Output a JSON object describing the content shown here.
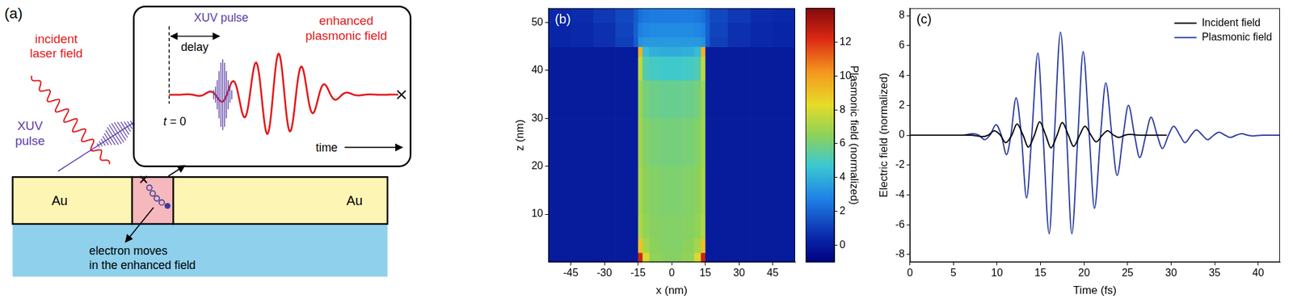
{
  "diagram": {
    "panel_label": "(a)",
    "incident_field": [
      "incident",
      "laser field"
    ],
    "xuv_pulse": [
      "XUV",
      "pulse"
    ],
    "metal_left": "Au",
    "metal_right": "Au",
    "electron_note": [
      "electron moves",
      "in the enhanced field"
    ],
    "inset": {
      "xuv_pulse": "XUV pulse",
      "delay": "delay",
      "plasmonic_field": [
        "enhanced",
        "plasmonic field"
      ],
      "time_zero": "t = 0",
      "time": "time"
    }
  },
  "chart_data": [
    {
      "type": "heatmap",
      "panel_label": "(b)",
      "x_label": "x (nm)",
      "y_label": "z (nm)",
      "xlim": [
        -55,
        55
      ],
      "xticks": [
        -45,
        -30,
        -15,
        0,
        15,
        30,
        45
      ],
      "ylim": [
        0,
        53
      ],
      "yticks": [
        10,
        20,
        30,
        40,
        50
      ],
      "grid": false,
      "x_edges": [
        -55,
        -45,
        -35,
        -25,
        -17,
        -15,
        -13,
        -10,
        -5,
        0,
        5,
        10,
        13,
        15,
        17,
        25,
        35,
        45,
        55
      ],
      "y_edges": [
        0,
        2,
        5,
        10,
        20,
        30,
        38,
        43,
        45,
        47,
        50,
        53
      ],
      "cells": [
        [
          0,
          0,
          0,
          0,
          0,
          12.5,
          8,
          6.6,
          6.4,
          6.4,
          6.6,
          8,
          12.5,
          0,
          0,
          0,
          0,
          0
        ],
        [
          0,
          0,
          0,
          0,
          0,
          9,
          7,
          6.5,
          6.3,
          6.3,
          6.5,
          7,
          9,
          0,
          0,
          0,
          0,
          0
        ],
        [
          0,
          0,
          0,
          0,
          0,
          7.2,
          6.6,
          6.4,
          6.3,
          6.3,
          6.4,
          6.6,
          7.2,
          0,
          0,
          0,
          0,
          0
        ],
        [
          0,
          0,
          0,
          0,
          0,
          7,
          6.5,
          6.3,
          6.2,
          6.2,
          6.3,
          6.5,
          7,
          0,
          0,
          0,
          0,
          0
        ],
        [
          0,
          0,
          0,
          0,
          0,
          6.9,
          6.3,
          6.1,
          6,
          6,
          6.1,
          6.3,
          6.9,
          0,
          0,
          0,
          0,
          0
        ],
        [
          0,
          0,
          0,
          0,
          0,
          6.8,
          6,
          5.8,
          5.7,
          5.7,
          5.8,
          6,
          6.8,
          0,
          0,
          0,
          0,
          0
        ],
        [
          0,
          0,
          0,
          0,
          0,
          7.5,
          5.2,
          4.9,
          4.8,
          4.8,
          4.9,
          5.2,
          7.5,
          0,
          0,
          0,
          0,
          0
        ],
        [
          0,
          0,
          0,
          0,
          0,
          9.5,
          4.4,
          4,
          3.9,
          3.9,
          4,
          4.4,
          9.5,
          0,
          0,
          0,
          0,
          0
        ],
        [
          0.4,
          0.5,
          0.7,
          1.1,
          1.8,
          3.2,
          3.4,
          3.4,
          3.4,
          3.4,
          3.4,
          3.4,
          3.2,
          1.8,
          1.1,
          0.7,
          0.5,
          0.4
        ],
        [
          0.4,
          0.5,
          0.7,
          1.2,
          1.9,
          2.7,
          2.9,
          3,
          3,
          3,
          3,
          2.9,
          2.7,
          1.9,
          1.2,
          0.7,
          0.5,
          0.4
        ],
        [
          0.5,
          0.6,
          0.9,
          1.3,
          1.8,
          2.3,
          2.5,
          2.6,
          2.6,
          2.6,
          2.6,
          2.5,
          2.3,
          1.8,
          1.3,
          0.9,
          0.6,
          0.5
        ]
      ],
      "colorbar": {
        "label": "Plasmonic field (normalized)",
        "range": [
          -1,
          14
        ],
        "ticks": [
          0,
          2,
          4,
          6,
          8,
          10,
          12
        ]
      }
    },
    {
      "type": "line",
      "panel_label": "(c)",
      "x_label": "Time (fs)",
      "y_label": "Electric field (normalized)",
      "xlim": [
        0,
        42.5
      ],
      "xticks": [
        0,
        5,
        10,
        15,
        20,
        25,
        30,
        35,
        40
      ],
      "ylim": [
        -8.5,
        8.5
      ],
      "yticks": [
        -8,
        -6,
        -4,
        -2,
        0,
        2,
        4,
        6,
        8
      ],
      "grid": false,
      "legend": "upper right",
      "series": [
        {
          "name": "Incident field",
          "color": "#000000",
          "x": [
            0,
            7,
            8.3,
            9.0,
            9.7,
            10.4,
            11.0,
            11.7,
            12.3,
            13.0,
            13.6,
            14.3,
            14.9,
            15.6,
            16.2,
            16.9,
            17.5,
            18.2,
            18.8,
            19.5,
            20.1,
            20.8,
            21.4,
            22.1,
            22.7,
            23.4,
            24.0,
            24.7,
            25.3,
            26.5,
            29.5
          ],
          "values": [
            0,
            0,
            -0.1,
            0,
            0.3,
            0,
            -0.5,
            0,
            0.75,
            0,
            -0.8,
            0,
            0.9,
            0,
            -0.85,
            0,
            0.85,
            0,
            -0.75,
            0,
            0.6,
            0,
            -0.45,
            0,
            0.3,
            0,
            -0.15,
            0,
            0.05,
            0,
            0
          ]
        },
        {
          "name": "Plasmonic field",
          "color": "#2b3d9e",
          "x": [
            0,
            6,
            7.2,
            7.9,
            8.6,
            9.2,
            9.9,
            10.5,
            11.1,
            11.6,
            12.2,
            12.8,
            13.4,
            14.0,
            14.7,
            15.3,
            16.0,
            16.6,
            17.3,
            18.0,
            18.6,
            19.3,
            19.9,
            20.6,
            21.2,
            21.9,
            22.5,
            23.2,
            23.8,
            24.5,
            25.1,
            25.8,
            26.4,
            27.1,
            27.7,
            28.4,
            29.0,
            29.7,
            30.3,
            31.0,
            31.6,
            32.3,
            32.9,
            33.6,
            34.2,
            34.9,
            35.5,
            36.2,
            36.8,
            37.5,
            38.1,
            38.8,
            39.4,
            40.5,
            42.5
          ],
          "values": [
            0,
            0,
            0.1,
            0,
            -0.3,
            0,
            0.7,
            0,
            -1.3,
            0,
            2.5,
            0,
            -4.2,
            0,
            5.5,
            0,
            -6.6,
            0,
            6.9,
            0,
            -6.6,
            0,
            5.6,
            0,
            -4.9,
            0,
            3.5,
            0,
            -2.7,
            0,
            2.0,
            0,
            -1.5,
            0,
            1.2,
            0,
            -0.9,
            0,
            0.6,
            0,
            -0.5,
            0,
            0.35,
            0,
            -0.3,
            0,
            0.2,
            0,
            -0.15,
            0,
            0.1,
            0,
            -0.05,
            0,
            0
          ]
        }
      ]
    }
  ]
}
